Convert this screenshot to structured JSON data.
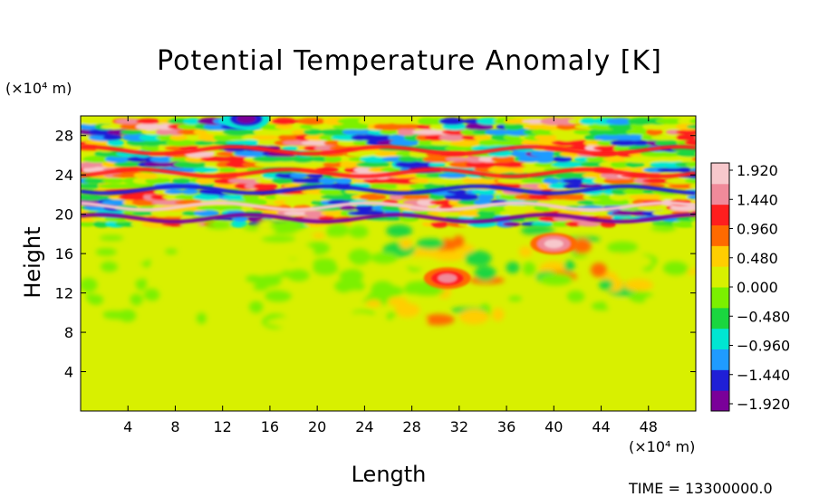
{
  "chart_data": {
    "type": "heatmap",
    "title": "Potential Temperature Anomaly [K]",
    "xlabel": "Length",
    "ylabel": "Height",
    "x_unit": "(×10⁴ m)",
    "y_unit": "(×10⁴ m)",
    "time_label": "TIME = 13300000.0",
    "x_ticks": [
      "4",
      "8",
      "12",
      "16",
      "20",
      "24",
      "28",
      "32",
      "36",
      "40",
      "44",
      "48"
    ],
    "y_ticks": [
      "4",
      "8",
      "12",
      "16",
      "20",
      "24",
      "28"
    ],
    "xlim": [
      0,
      52
    ],
    "ylim": [
      0,
      30
    ],
    "colorbar": {
      "ticks": [
        "1.920",
        "1.440",
        "0.960",
        "0.480",
        "0.000",
        "−0.480",
        "−0.960",
        "−1.440",
        "−1.920"
      ],
      "range": [
        -2.16,
        2.16
      ],
      "colors": [
        "#7a0099",
        "#1f1fd6",
        "#1f9bff",
        "#00e6d2",
        "#1ad63f",
        "#7bf000",
        "#d8f000",
        "#ffce00",
        "#ff6a00",
        "#ff1e1e",
        "#f08a9a",
        "#f7c8cc"
      ]
    },
    "features": [
      {
        "type": "band",
        "x": [
          0,
          52
        ],
        "y": [
          0,
          10.5
        ],
        "value": 0.2
      },
      {
        "type": "band",
        "x": [
          0,
          52
        ],
        "y": [
          10.5,
          19
        ],
        "value": 0.1
      },
      {
        "type": "blob",
        "x": 40,
        "y": 17,
        "value": 1.9
      },
      {
        "type": "blob",
        "x": 31,
        "y": 13.5,
        "value": 1.5
      },
      {
        "type": "blob",
        "x": 14,
        "y": 29.7,
        "value": -1.9
      },
      {
        "type": "layer",
        "y": 20.8,
        "value": 1.9
      },
      {
        "type": "layer",
        "y": 19.6,
        "value": -1.9
      },
      {
        "type": "layer",
        "y": 22.5,
        "value": -1.6
      },
      {
        "type": "layer",
        "y": 24.2,
        "value": 1.4
      },
      {
        "type": "layer",
        "y": 26.5,
        "value": 1.2
      }
    ]
  }
}
